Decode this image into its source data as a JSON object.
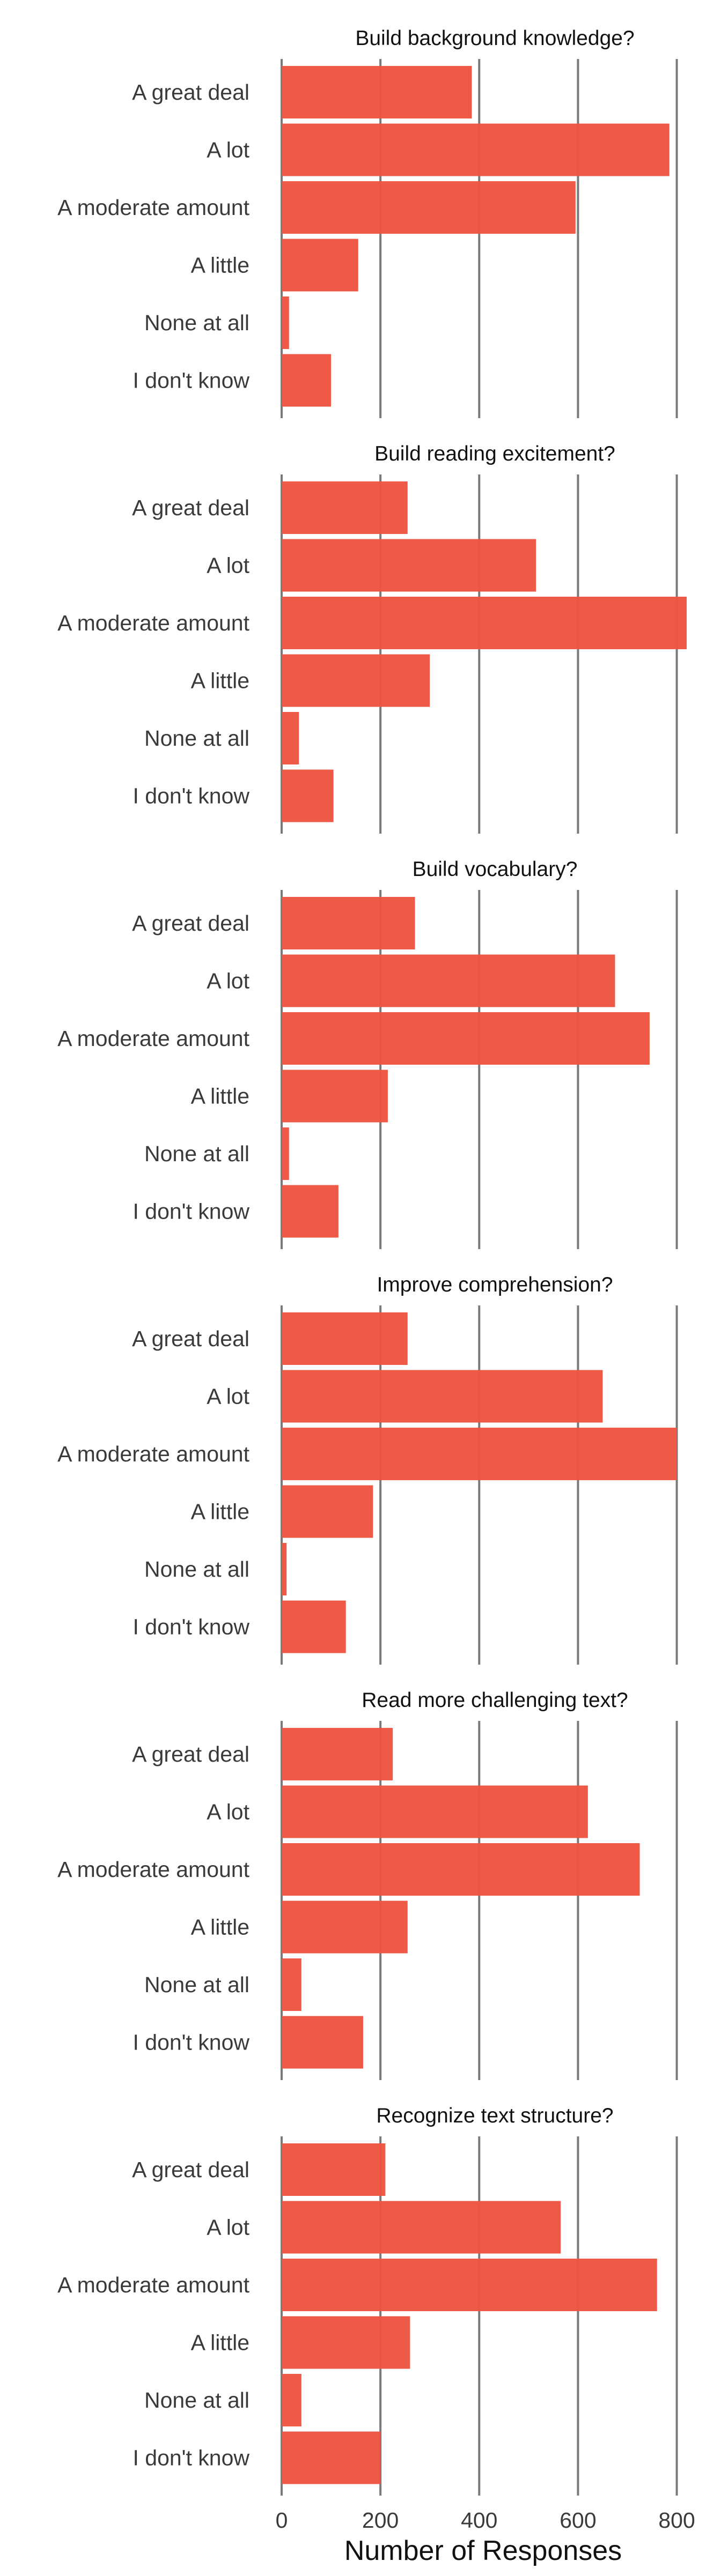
{
  "chart_data": {
    "type": "bar",
    "orientation": "horizontal",
    "categories": [
      "A great deal",
      "A lot",
      "A moderate amount",
      "A little",
      "None at all",
      "I don't know"
    ],
    "xlabel": "Number of Responses",
    "xlim": [
      0,
      820
    ],
    "xticks": [
      0,
      200,
      400,
      600,
      800
    ],
    "grid": true,
    "bar_color": "#ee5542",
    "grid_color": "#7a7a7a",
    "panels": [
      {
        "title": "Build background knowledge?",
        "values": [
          385,
          785,
          595,
          155,
          15,
          100
        ]
      },
      {
        "title": "Build reading excitement?",
        "values": [
          255,
          515,
          820,
          300,
          35,
          105
        ]
      },
      {
        "title": "Build vocabulary?",
        "values": [
          270,
          675,
          745,
          215,
          15,
          115
        ]
      },
      {
        "title": "Improve comprehension?",
        "values": [
          255,
          650,
          800,
          185,
          10,
          130
        ]
      },
      {
        "title": "Read more challenging text?",
        "values": [
          225,
          620,
          725,
          255,
          40,
          165
        ]
      },
      {
        "title": "Recognize text structure?",
        "values": [
          210,
          565,
          760,
          260,
          40,
          200
        ]
      }
    ]
  }
}
